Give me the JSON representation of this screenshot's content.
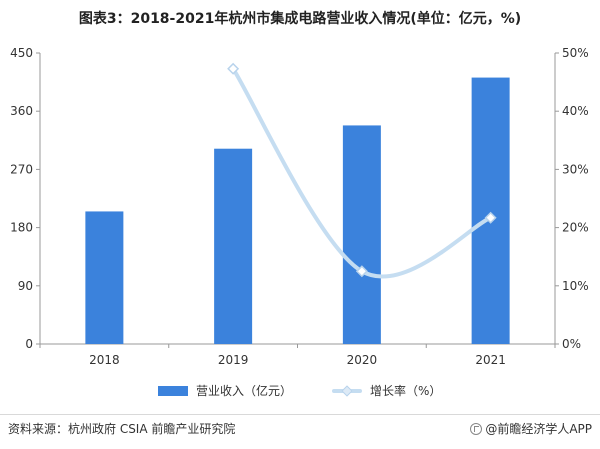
{
  "title": "图表3：2018-2021年杭州市集成电路营业收入情况(单位：亿元，%)",
  "source": "资料来源：杭州政府 CSIA 前瞻产业研究院",
  "brand": "@前瞻经济学人APP",
  "chart_data": {
    "type": "bar+line",
    "categories": [
      "2018",
      "2019",
      "2020",
      "2021"
    ],
    "series": [
      {
        "name": "营业收入（亿元）",
        "type": "bar",
        "axis": "left",
        "values": [
          205,
          302,
          338,
          412
        ],
        "color": "#3b82dc"
      },
      {
        "name": "增长率（%）",
        "type": "line",
        "axis": "right",
        "values": [
          null,
          47.3,
          12.5,
          21.7
        ],
        "color": "#c5ddf1"
      }
    ],
    "y_left": {
      "min": 0,
      "max": 450,
      "ticks": [
        "0",
        "90",
        "180",
        "270",
        "360",
        "450"
      ]
    },
    "y_right": {
      "min": 0,
      "max": 50,
      "ticks": [
        "0%",
        "10%",
        "20%",
        "30%",
        "40%",
        "50%"
      ]
    },
    "grid": false,
    "legend_position": "bottom"
  }
}
